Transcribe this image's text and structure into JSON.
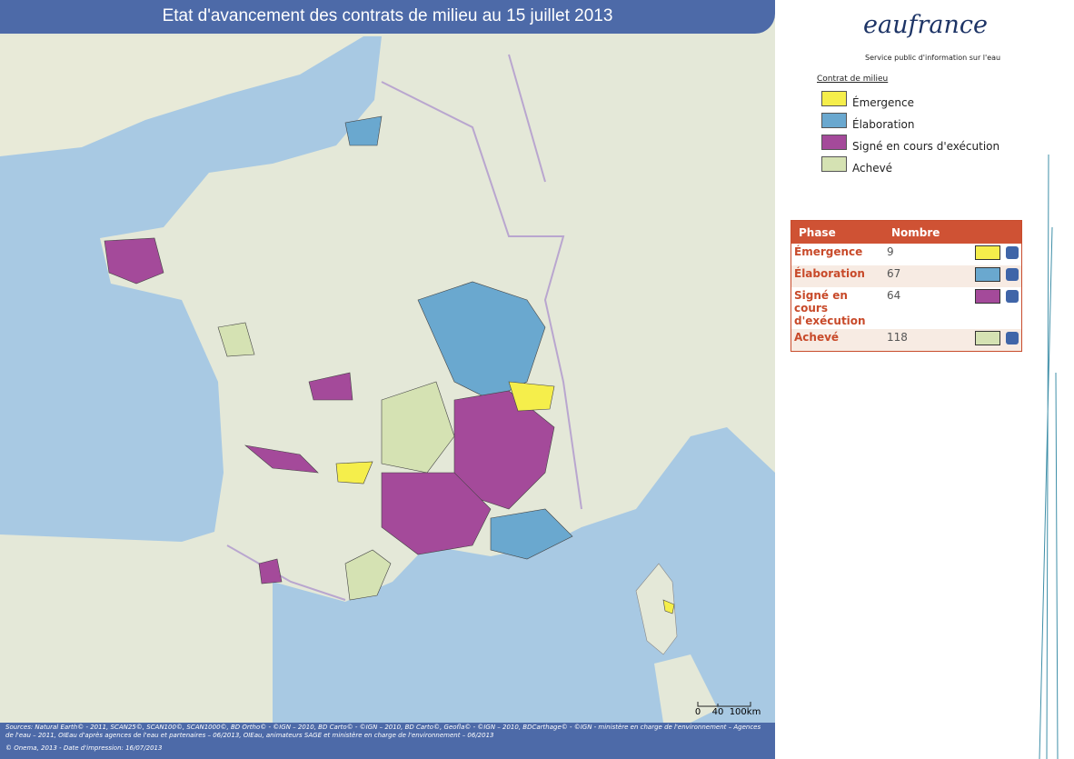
{
  "header": {
    "title": "Etat d'avancement des contrats de milieu au 15 juillet 2013"
  },
  "logo": {
    "name": "eaufrance",
    "tagline": "Service public d'information sur l'eau"
  },
  "legend": {
    "title": "Contrat de milieu",
    "items": [
      {
        "label": "Émergence",
        "color": "#f5ee4b"
      },
      {
        "label": "Élaboration",
        "color": "#6aa8cf"
      },
      {
        "label": "Signé en cours d'exécution",
        "color": "#a44a9a"
      },
      {
        "label": "Achevé",
        "color": "#d5e2b3"
      }
    ]
  },
  "table": {
    "columns": [
      "Phase",
      "Nombre"
    ],
    "rows": [
      [
        "Émergence",
        "9"
      ],
      [
        "Élaboration",
        "67"
      ],
      [
        "Signé en cours d'exécution",
        "64"
      ],
      [
        "Achevé",
        "118"
      ]
    ]
  },
  "scale": {
    "labels": [
      "0",
      "40",
      "100km"
    ]
  },
  "footer": {
    "sources": "Sources: Natural Earth© - 2011, SCAN25©, SCAN100©, SCAN1000©, BD Ortho© - ©IGN – 2010, BD Carto© - ©IGN – 2010, BD Carto©, Geofla© - ©IGN – 2010, BDCarthage© - ©IGN - ministère en charge de l'environnement – Agences de l'eau – 2011, OIEau d'après agences de l'eau et partenaires – 06/2013, OIEau, animateurs SAGE et ministère en charge de l'environnement – 06/2013",
    "credit": "© Onema, 2013 - Date d'impression: 16/07/2013"
  }
}
